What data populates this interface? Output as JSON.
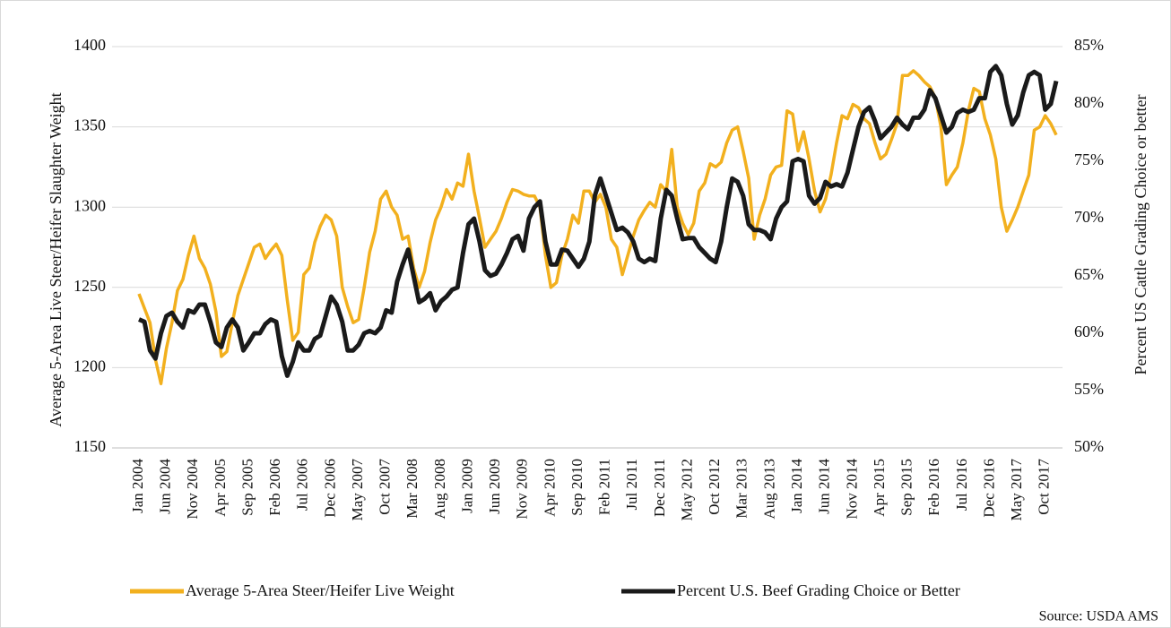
{
  "chart_data": {
    "type": "line",
    "y_label": "Average 5-Area Live Steer/Heifer Slaughter Weight",
    "y2_label": "Percent US Cattle Grading Choice or better",
    "source": "Source: USDA AMS",
    "categories": [
      "Jan 2004",
      null,
      null,
      null,
      null,
      "Jun 2004",
      null,
      null,
      null,
      null,
      "Nov 2004",
      null,
      null,
      null,
      null,
      "Apr 2005",
      null,
      null,
      null,
      null,
      "Sep 2005",
      null,
      null,
      null,
      null,
      "Feb 2006",
      null,
      null,
      null,
      null,
      "Jul 2006",
      null,
      null,
      null,
      null,
      "Dec 2006",
      null,
      null,
      null,
      null,
      "May 2007",
      null,
      null,
      null,
      null,
      "Oct 2007",
      null,
      null,
      null,
      null,
      "Mar 2008",
      null,
      null,
      null,
      null,
      "Aug 2008",
      null,
      null,
      null,
      null,
      "Jan 2009",
      null,
      null,
      null,
      null,
      "Jun 2009",
      null,
      null,
      null,
      null,
      "Nov 2009",
      null,
      null,
      null,
      null,
      "Apr 2010",
      null,
      null,
      null,
      null,
      "Sep 2010",
      null,
      null,
      null,
      null,
      "Feb 2011",
      null,
      null,
      null,
      null,
      "Jul 2011",
      null,
      null,
      null,
      null,
      "Dec 2011",
      null,
      null,
      null,
      null,
      "May 2012",
      null,
      null,
      null,
      null,
      "Oct 2012",
      null,
      null,
      null,
      null,
      "Mar 2013",
      null,
      null,
      null,
      null,
      "Aug 2013",
      null,
      null,
      null,
      null,
      "Jan 2014",
      null,
      null,
      null,
      null,
      "Jun 2014",
      null,
      null,
      null,
      null,
      "Nov 2014",
      null,
      null,
      null,
      null,
      "Apr 2015",
      null,
      null,
      null,
      null,
      "Sep 2015",
      null,
      null,
      null,
      null,
      "Feb 2016",
      null,
      null,
      null,
      null,
      "Jul 2016",
      null,
      null,
      null,
      null,
      "Dec 2016",
      null,
      null,
      null,
      null,
      "May 2017",
      null,
      null,
      null,
      null,
      "Oct 2017",
      null,
      null
    ],
    "series": [
      {
        "name": "Average 5-Area Steer/Heifer Live Weight",
        "color": "#f2b01e",
        "axis": "y",
        "values": [
          1246,
          1237,
          1228,
          1205,
          1190,
          1212,
          1228,
          1248,
          1255,
          1270,
          1282,
          1268,
          1262,
          1252,
          1235,
          1207,
          1210,
          1228,
          1245,
          1255,
          1265,
          1275,
          1277,
          1268,
          1273,
          1277,
          1270,
          1242,
          1217,
          1222,
          1258,
          1262,
          1278,
          1288,
          1295,
          1292,
          1282,
          1250,
          1238,
          1228,
          1230,
          1250,
          1272,
          1285,
          1305,
          1310,
          1300,
          1295,
          1280,
          1282,
          1262,
          1250,
          1260,
          1278,
          1292,
          1300,
          1311,
          1305,
          1315,
          1313,
          1333,
          1310,
          1293,
          1275,
          1280,
          1285,
          1293,
          1303,
          1311,
          1310,
          1308,
          1307,
          1307,
          1300,
          1270,
          1250,
          1253,
          1270,
          1280,
          1295,
          1290,
          1310,
          1310,
          1303,
          1308,
          1300,
          1280,
          1275,
          1258,
          1270,
          1282,
          1292,
          1298,
          1303,
          1300,
          1314,
          1310,
          1336,
          1300,
          1290,
          1283,
          1290,
          1310,
          1315,
          1327,
          1325,
          1328,
          1340,
          1348,
          1350,
          1335,
          1318,
          1280,
          1295,
          1305,
          1320,
          1325,
          1326,
          1360,
          1358,
          1335,
          1347,
          1330,
          1310,
          1297,
          1305,
          1320,
          1340,
          1357,
          1355,
          1364,
          1362,
          1355,
          1352,
          1340,
          1330,
          1333,
          1342,
          1352,
          1382,
          1382,
          1385,
          1382,
          1378,
          1375,
          1368,
          1350,
          1314,
          1320,
          1325,
          1340,
          1360,
          1374,
          1372,
          1355,
          1345,
          1330,
          1300,
          1285,
          1292,
          1300,
          1310,
          1320,
          1348,
          1350,
          1357,
          1352,
          1345
        ]
      },
      {
        "name": "Percent U.S. Beef Grading Choice or Better",
        "color": "#1a1a1a",
        "axis": "y2",
        "values": [
          61.2,
          61.0,
          58.5,
          57.8,
          60.0,
          61.5,
          61.8,
          61.0,
          60.5,
          62.0,
          61.8,
          62.5,
          62.5,
          61.0,
          59.2,
          58.8,
          60.5,
          61.2,
          60.5,
          58.5,
          59.2,
          60.0,
          60.0,
          60.8,
          61.2,
          61.0,
          58.0,
          56.3,
          57.5,
          59.2,
          58.5,
          58.5,
          59.5,
          59.8,
          61.5,
          63.2,
          62.5,
          61.0,
          58.5,
          58.5,
          59.0,
          60.0,
          60.2,
          60.0,
          60.5,
          62.0,
          61.8,
          64.5,
          66.0,
          67.3,
          65.0,
          62.7,
          63.0,
          63.5,
          62.0,
          62.8,
          63.2,
          63.8,
          64.0,
          67.0,
          69.5,
          70.0,
          68.0,
          65.5,
          65.0,
          65.2,
          66.0,
          67.0,
          68.2,
          68.5,
          67.2,
          70.0,
          71.0,
          71.5,
          68.0,
          66.0,
          66.0,
          67.3,
          67.2,
          66.5,
          65.8,
          66.5,
          68.0,
          72.0,
          73.5,
          72.0,
          70.5,
          69.0,
          69.2,
          68.8,
          68.0,
          66.5,
          66.2,
          66.5,
          66.3,
          70.0,
          72.5,
          72.0,
          70.0,
          68.2,
          68.3,
          68.3,
          67.5,
          67.0,
          66.5,
          66.2,
          68.0,
          71.0,
          73.5,
          73.2,
          72.0,
          69.5,
          69.0,
          69.0,
          68.8,
          68.2,
          70.0,
          71.0,
          71.5,
          75.0,
          75.2,
          75.0,
          72.0,
          71.3,
          71.8,
          73.2,
          72.8,
          73.0,
          72.8,
          74.0,
          76.0,
          78.0,
          79.3,
          79.7,
          78.5,
          77.0,
          77.5,
          78.0,
          78.8,
          78.2,
          77.8,
          78.8,
          78.8,
          79.5,
          81.2,
          80.5,
          79.0,
          77.5,
          78.0,
          79.2,
          79.5,
          79.3,
          79.5,
          80.5,
          80.5,
          82.8,
          83.3,
          82.5,
          80.0,
          78.2,
          79.0,
          81.0,
          82.5,
          82.8,
          82.5,
          79.5,
          80.0,
          82.0
        ]
      }
    ],
    "ylim": [
      1150,
      1400
    ],
    "yticks": [
      1150,
      1200,
      1250,
      1300,
      1350,
      1400
    ],
    "y2lim": [
      50,
      85
    ],
    "y2ticks": [
      {
        "value": 50,
        "label": "50%"
      },
      {
        "value": 55,
        "label": "55%"
      },
      {
        "value": 60,
        "label": "60%"
      },
      {
        "value": 65,
        "label": "65%"
      },
      {
        "value": 70,
        "label": "70%"
      },
      {
        "value": 75,
        "label": "75%"
      },
      {
        "value": 80,
        "label": "80%"
      },
      {
        "value": 85,
        "label": "85%"
      }
    ],
    "grid": true
  }
}
